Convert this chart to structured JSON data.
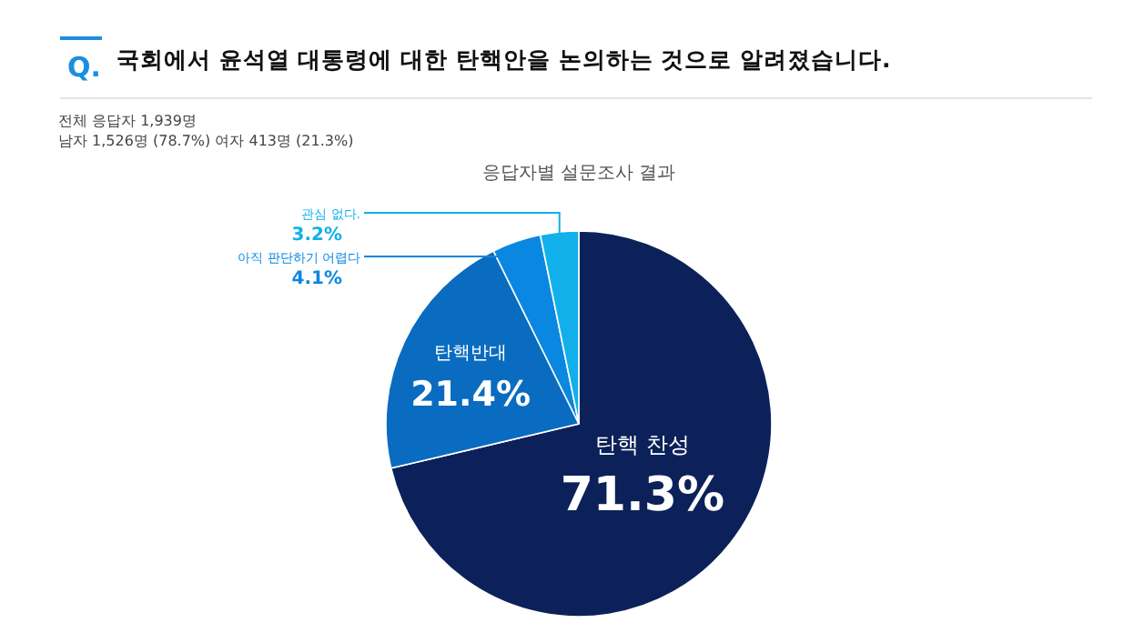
{
  "chart_data": {
    "type": "pie",
    "title": "국회에서 윤석열 대통령에 대한 탄핵안을 논의하는 것으로 알려졌습니다.",
    "subtitle": "응답자별 설문조사 결과",
    "annotations": [
      "Q.",
      "전체 응답자 1,939명",
      "남자 1,526명 (78.7%) 여자 413명 (21.3%)"
    ],
    "categories": [
      "탄핵 찬성",
      "탄핵반대",
      "아직 판단하기 어렵다",
      "관심 없다."
    ],
    "values": [
      71.3,
      21.4,
      4.1,
      3.2
    ],
    "value_labels": [
      "71.3%",
      "21.4%",
      "4.1%",
      "3.2%"
    ],
    "colors": [
      "#0c2159",
      "#0a6cc0",
      "#0a87e0",
      "#12b0ea"
    ]
  }
}
